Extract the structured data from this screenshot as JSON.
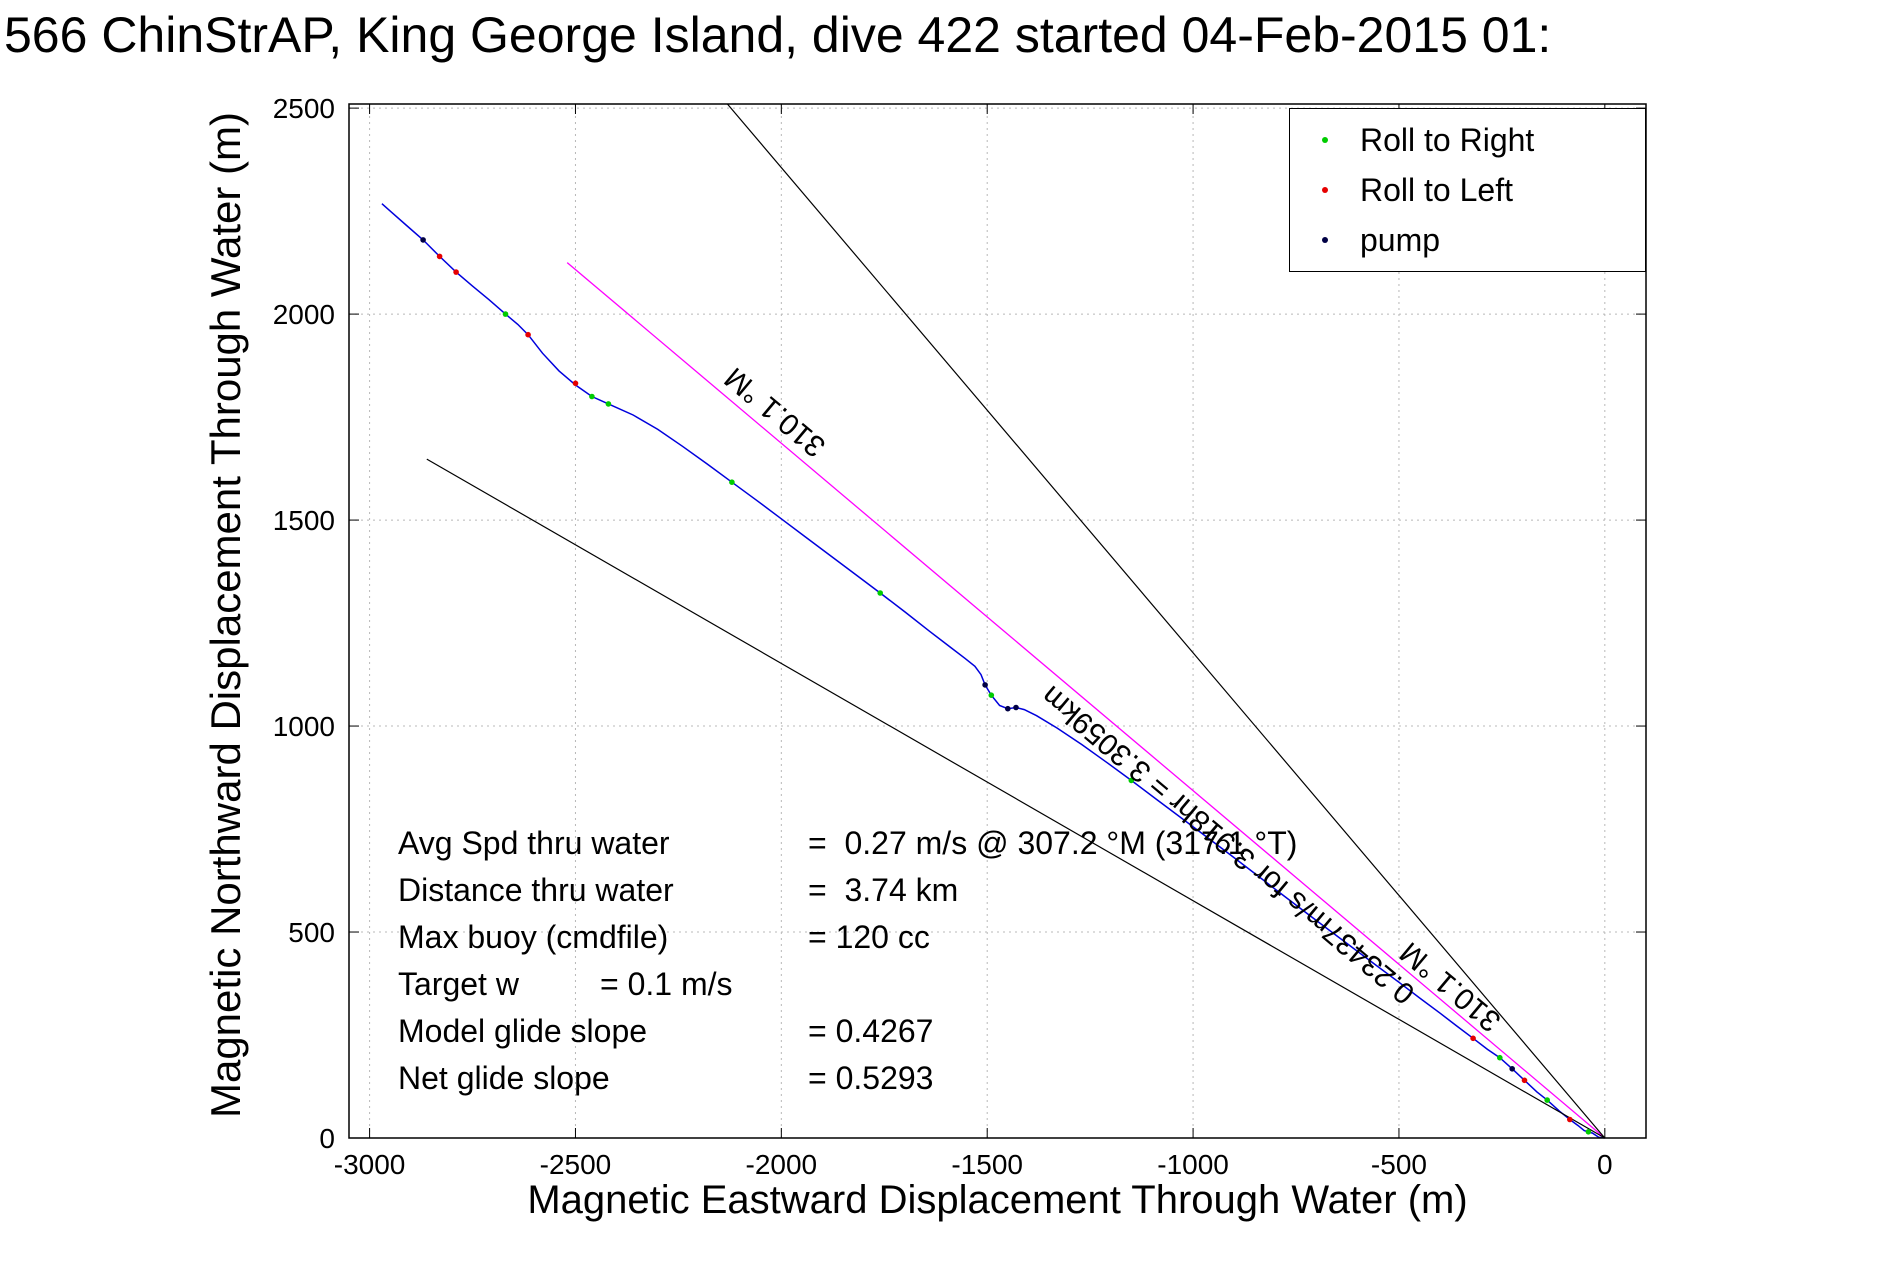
{
  "title": "566 ChinStrAP, King George Island, dive 422 started 04-Feb-2015 01:",
  "chart_data": {
    "type": "line",
    "title": "566 ChinStrAP, King George Island, dive 422 started 04-Feb-2015 01:",
    "xlabel": "Magnetic Eastward Displacement Through Water (m)",
    "ylabel": "Magnetic Northward Displacement Through Water (m)",
    "xlim": [
      -3050,
      100
    ],
    "ylim": [
      0,
      2510
    ],
    "xticks": [
      -3000,
      -2500,
      -2000,
      -1500,
      -1000,
      -500,
      0
    ],
    "yticks": [
      0,
      500,
      1000,
      1500,
      2000,
      2500
    ],
    "grid": true,
    "legend": {
      "position": "top-right",
      "entries": [
        {
          "label": "Roll to Right",
          "color": "#00cc00",
          "marker": "dot"
        },
        {
          "label": "Roll to Left",
          "color": "#e60000",
          "marker": "dot"
        },
        {
          "label": "pump",
          "color": "#000044",
          "marker": "dot"
        }
      ]
    },
    "series": [
      {
        "name": "dive-track",
        "color": "#0000dd",
        "width": 1.5,
        "points": [
          [
            0,
            0
          ],
          [
            -15,
            2
          ],
          [
            -30,
            12
          ],
          [
            -50,
            18
          ],
          [
            -65,
            30
          ],
          [
            -85,
            45
          ],
          [
            -110,
            65
          ],
          [
            -140,
            92
          ],
          [
            -165,
            112
          ],
          [
            -195,
            140
          ],
          [
            -225,
            168
          ],
          [
            -255,
            195
          ],
          [
            -285,
            215
          ],
          [
            -320,
            242
          ],
          [
            -360,
            272
          ],
          [
            -400,
            303
          ],
          [
            -450,
            340
          ],
          [
            -500,
            378
          ],
          [
            -550,
            415
          ],
          [
            -610,
            460
          ],
          [
            -670,
            505
          ],
          [
            -730,
            550
          ],
          [
            -790,
            596
          ],
          [
            -850,
            642
          ],
          [
            -910,
            688
          ],
          [
            -970,
            733
          ],
          [
            -1030,
            778
          ],
          [
            -1090,
            823
          ],
          [
            -1150,
            868
          ],
          [
            -1210,
            912
          ],
          [
            -1270,
            955
          ],
          [
            -1330,
            995
          ],
          [
            -1380,
            1025
          ],
          [
            -1410,
            1040
          ],
          [
            -1430,
            1045
          ],
          [
            -1450,
            1042
          ],
          [
            -1470,
            1050
          ],
          [
            -1490,
            1075
          ],
          [
            -1505,
            1100
          ],
          [
            -1515,
            1125
          ],
          [
            -1530,
            1145
          ],
          [
            -1555,
            1165
          ],
          [
            -1590,
            1192
          ],
          [
            -1640,
            1230
          ],
          [
            -1700,
            1277
          ],
          [
            -1760,
            1323
          ],
          [
            -1820,
            1368
          ],
          [
            -1880,
            1413
          ],
          [
            -1940,
            1458
          ],
          [
            -2000,
            1503
          ],
          [
            -2060,
            1548
          ],
          [
            -2120,
            1592
          ],
          [
            -2180,
            1636
          ],
          [
            -2240,
            1679
          ],
          [
            -2300,
            1720
          ],
          [
            -2360,
            1755
          ],
          [
            -2420,
            1782
          ],
          [
            -2460,
            1800
          ],
          [
            -2500,
            1828
          ],
          [
            -2540,
            1862
          ],
          [
            -2580,
            1905
          ],
          [
            -2615,
            1950
          ],
          [
            -2640,
            1975
          ],
          [
            -2670,
            2000
          ],
          [
            -2710,
            2035
          ],
          [
            -2750,
            2068
          ],
          [
            -2790,
            2102
          ],
          [
            -2830,
            2140
          ],
          [
            -2870,
            2180
          ],
          [
            -2910,
            2215
          ],
          [
            -2950,
            2250
          ],
          [
            -2970,
            2268
          ]
        ]
      },
      {
        "name": "bearing-310-line",
        "color": "#ff00ff",
        "width": 1.3,
        "points": [
          [
            0,
            0
          ],
          [
            -2520,
            2125
          ]
        ]
      },
      {
        "name": "fan-upper",
        "color": "#000000",
        "width": 1.2,
        "points": [
          [
            0,
            0
          ],
          [
            -2131,
            2510
          ]
        ]
      },
      {
        "name": "fan-lower",
        "color": "#000000",
        "width": 1.2,
        "points": [
          [
            0,
            0
          ],
          [
            -2861,
            1648
          ]
        ]
      }
    ],
    "markers": [
      {
        "name": "roll-to-right",
        "color": "#00cc00",
        "points": [
          [
            -40,
            15
          ],
          [
            -140,
            92
          ],
          [
            -255,
            195
          ],
          [
            -1150,
            868
          ],
          [
            -1490,
            1075
          ],
          [
            -1760,
            1323
          ],
          [
            -2120,
            1592
          ],
          [
            -2420,
            1782
          ],
          [
            -2460,
            1800
          ],
          [
            -2670,
            2000
          ]
        ]
      },
      {
        "name": "roll-to-left",
        "color": "#e60000",
        "points": [
          [
            -85,
            45
          ],
          [
            -195,
            140
          ],
          [
            -320,
            242
          ],
          [
            -2500,
            1832
          ],
          [
            -2615,
            1950
          ],
          [
            -2790,
            2102
          ],
          [
            -2830,
            2140
          ]
        ]
      },
      {
        "name": "pump",
        "color": "#000044",
        "points": [
          [
            -225,
            168
          ],
          [
            -1430,
            1045
          ],
          [
            -1450,
            1042
          ],
          [
            -1505,
            1100
          ],
          [
            -2870,
            2180
          ]
        ]
      }
    ],
    "annotations": [
      {
        "text": "310.1 °M",
        "x": -2000,
        "y": 1780,
        "rotation": -140
      },
      {
        "text": "0.23437m/s for 3.918hr = 3.3059km",
        "x": -900,
        "y": 730,
        "rotation": -140
      },
      {
        "text": "310.1 °M",
        "x": -360,
        "y": 385,
        "rotation": -140
      }
    ]
  },
  "stats": {
    "rows": [
      {
        "label": "Avg Spd thru water",
        "value": "=  0.27 m/s @ 307.2 °M (317.1 °T)"
      },
      {
        "label": "Distance thru water",
        "value": "=  3.74 km"
      },
      {
        "label": "Max buoy (cmdfile)",
        "value": "= 120 cc"
      },
      {
        "label": "Target w",
        "value": "= 0.1 m/s"
      },
      {
        "label": "Model glide slope",
        "value": "= 0.4267"
      },
      {
        "label": "Net glide slope",
        "value": "= 0.5293"
      }
    ]
  }
}
